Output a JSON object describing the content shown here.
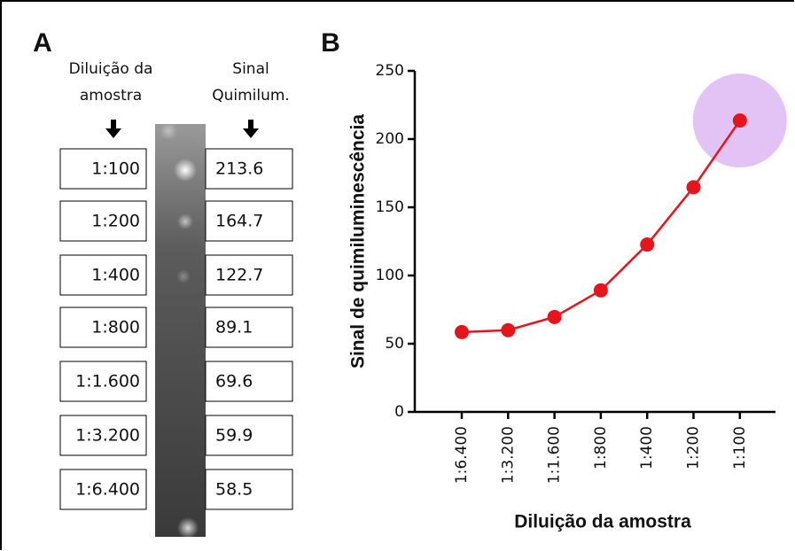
{
  "panel_a": {
    "label": "A",
    "dilution_header": [
      "Diluição da",
      "amostra"
    ],
    "signal_header": [
      "Sinal",
      "Quimilum."
    ],
    "rows": [
      [
        "1:100",
        "213.6"
      ],
      [
        "1:200",
        "164.7"
      ],
      [
        "1:400",
        "122.7"
      ],
      [
        "1:800",
        "89.1"
      ],
      [
        "1:1.600",
        "69.6"
      ],
      [
        "1:3.200",
        "59.9"
      ],
      [
        "1:6.400",
        "58.5"
      ]
    ]
  },
  "chart_data": {
    "type": "line",
    "label": "B",
    "x_label": "Diluição da amostra",
    "y_label": "Sinal de quimiluminescência",
    "categories": [
      "1:6.400",
      "1:3.200",
      "1:1.600",
      "1:800",
      "1:400",
      "1:200",
      "1:100"
    ],
    "values": [
      58.5,
      59.9,
      69.6,
      89.1,
      122.7,
      164.7,
      213.6
    ],
    "color": "#e8141b",
    "highlight_color": "#e3c3f5",
    "ylim": [
      0,
      250
    ],
    "yticks": [
      0,
      50,
      100,
      150,
      200,
      250
    ]
  }
}
